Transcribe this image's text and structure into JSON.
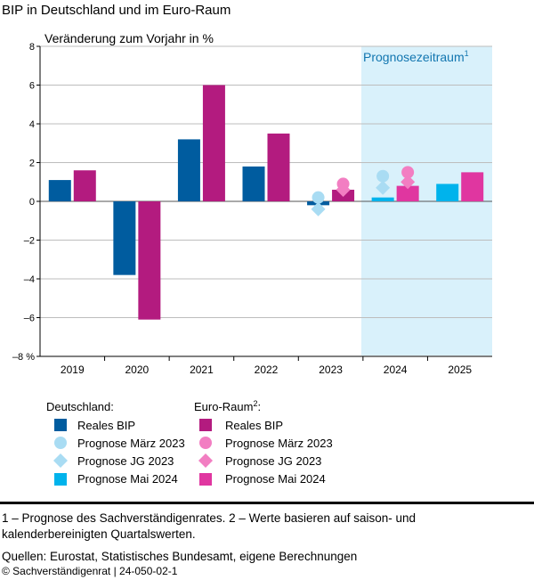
{
  "chart_data": {
    "type": "bar",
    "title": "BIP in Deutschland und im Euro-Raum",
    "ylabel": "Veränderung zum Vorjahr in %",
    "ylim": [
      -8,
      8
    ],
    "yticks": [
      "8",
      "6",
      "4",
      "2",
      "0",
      "–2",
      "–4",
      "–6",
      "–8 %"
    ],
    "ytick_values": [
      8,
      6,
      4,
      2,
      0,
      -2,
      -4,
      -6,
      -8
    ],
    "categories": [
      "2019",
      "2020",
      "2021",
      "2022",
      "2023",
      "2024",
      "2025"
    ],
    "forecast_label": "Prognosezeitraum",
    "forecast_sup": "1",
    "forecast_from_index": 5,
    "series": [
      {
        "name": "Deutschland: Reales BIP",
        "group": "de",
        "kind": "bar",
        "color": "#005c9f",
        "values": [
          1.1,
          -3.8,
          3.2,
          1.8,
          -0.2,
          null,
          null
        ]
      },
      {
        "name": "Deutschland: Prognose Mai 2024",
        "group": "de",
        "kind": "bar",
        "color": "#00b3ec",
        "values": [
          null,
          null,
          null,
          null,
          null,
          0.2,
          0.9
        ]
      },
      {
        "name": "Euro-Raum: Reales BIP",
        "group": "ea",
        "kind": "bar",
        "color": "#b31b7f",
        "values": [
          1.6,
          -6.1,
          6.0,
          3.5,
          0.6,
          null,
          null
        ]
      },
      {
        "name": "Euro-Raum: Prognose Mai 2024",
        "group": "ea",
        "kind": "bar",
        "color": "#e036a0",
        "values": [
          null,
          null,
          null,
          null,
          null,
          0.8,
          1.5
        ]
      },
      {
        "name": "Deutschland: Prognose März 2023",
        "group": "de",
        "kind": "circle",
        "color": "#a9dcf3",
        "values": [
          null,
          null,
          null,
          null,
          0.2,
          1.3,
          null
        ]
      },
      {
        "name": "Deutschland: Prognose JG 2023",
        "group": "de",
        "kind": "diamond",
        "color": "#a9dcf3",
        "values": [
          null,
          null,
          null,
          null,
          -0.4,
          0.7,
          null
        ]
      },
      {
        "name": "Euro-Raum: Prognose März 2023",
        "group": "ea",
        "kind": "circle",
        "color": "#f27ec2",
        "values": [
          null,
          null,
          null,
          null,
          0.9,
          1.5,
          null
        ]
      },
      {
        "name": "Euro-Raum: Prognose JG 2023",
        "group": "ea",
        "kind": "diamond",
        "color": "#f27ec2",
        "values": [
          null,
          null,
          null,
          null,
          0.6,
          1.0,
          null
        ]
      }
    ]
  },
  "legend": {
    "de_title": "Deutschland:",
    "ea_title": "Euro-Raum",
    "ea_sup": "2",
    "ea_colon": ":",
    "items": [
      "Reales BIP",
      "Prognose März 2023",
      "Prognose JG 2023",
      "Prognose Mai 2024"
    ]
  },
  "footnotes": {
    "note1": "1 – Prognose des Sachverständigenrates.  2 – Werte basieren auf saison- und",
    "note1b": "kalenderbereinigten Quartalswerten.",
    "sources": "Quellen: Eurostat, Statistisches Bundesamt, eigene Berechnungen",
    "copyright": "© Sachverständigenrat | 24-050-02-1"
  }
}
